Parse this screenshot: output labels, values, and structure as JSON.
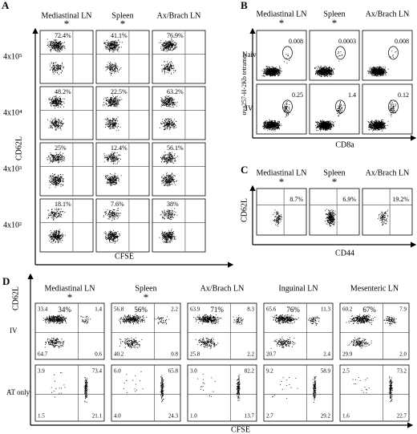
{
  "A": {
    "label": "A",
    "columns": [
      "Mediastinal LN",
      "Spleen",
      "Ax/Brach LN"
    ],
    "stars": [
      "*",
      "*"
    ],
    "rows": [
      {
        "label": "4x10⁵",
        "values": [
          "72.4%",
          "41.1%",
          "76.9%"
        ]
      },
      {
        "label": "4x10⁴",
        "values": [
          "48.2%",
          "22.5%",
          "63.2%"
        ]
      },
      {
        "label": "4x10³",
        "values": [
          "25%",
          "12.4%",
          "56.1%"
        ]
      },
      {
        "label": "4x10²",
        "values": [
          "18.1%",
          "7.6%",
          "38%"
        ]
      }
    ],
    "x_axis": "CFSE",
    "y_axis": "CD62L"
  },
  "B": {
    "label": "B",
    "columns": [
      "Mediastinal LN",
      "Spleen",
      "Ax/Brach LN"
    ],
    "stars": [
      "*",
      "*"
    ],
    "rows": [
      {
        "label": "Naive",
        "values": [
          "0.008",
          "0.0003",
          "0.008"
        ]
      },
      {
        "label": "IV",
        "values": [
          "0.25",
          "1.4",
          "0.12"
        ]
      }
    ],
    "x_axis": "CD8a",
    "y_axis": "ova257-H-2Kb tetramer"
  },
  "C": {
    "label": "C",
    "columns": [
      "Mediastinal LN",
      "Spleen",
      "Ax/Brach LN"
    ],
    "stars": [
      "*",
      "*"
    ],
    "values": [
      "8.7%",
      "6.9%",
      "19.2%"
    ],
    "x_axis": "CD44",
    "y_axis": "CD62L"
  },
  "D": {
    "label": "D",
    "columns": [
      "Mediastinal LN",
      "Spleen",
      "Ax/Brach LN",
      "Inguinal LN",
      "Mesenteric LN"
    ],
    "stars": [
      "*",
      "*"
    ],
    "rows": [
      {
        "label": "IV",
        "percent": [
          "34%",
          "56%",
          "71%",
          "76%",
          "67%"
        ],
        "quadrants": [
          [
            "33.4",
            "1.4",
            "64.7",
            "0.6"
          ],
          [
            "56.8",
            "2.2",
            "40.2",
            "0.8"
          ],
          [
            "63.9",
            "8.3",
            "25.8",
            "2.2"
          ],
          [
            "65.6",
            "11.3",
            "20.7",
            "2.4"
          ],
          [
            "60.2",
            "7.9",
            "29.9",
            "2.0"
          ]
        ]
      },
      {
        "label": "AT only",
        "quadrants": [
          [
            "3.9",
            "73.4",
            "1.5",
            "21.1"
          ],
          [
            "6.0",
            "65.8",
            "4.0",
            "24.3"
          ],
          [
            "3.0",
            "82.2",
            "1.0",
            "13.7"
          ],
          [
            "9.2",
            "58.9",
            "2.7",
            "29.2"
          ],
          [
            "2.5",
            "73.2",
            "1.6",
            "22.7"
          ]
        ]
      }
    ],
    "x_axis": "CFSE",
    "y_axis": "CD62L"
  }
}
